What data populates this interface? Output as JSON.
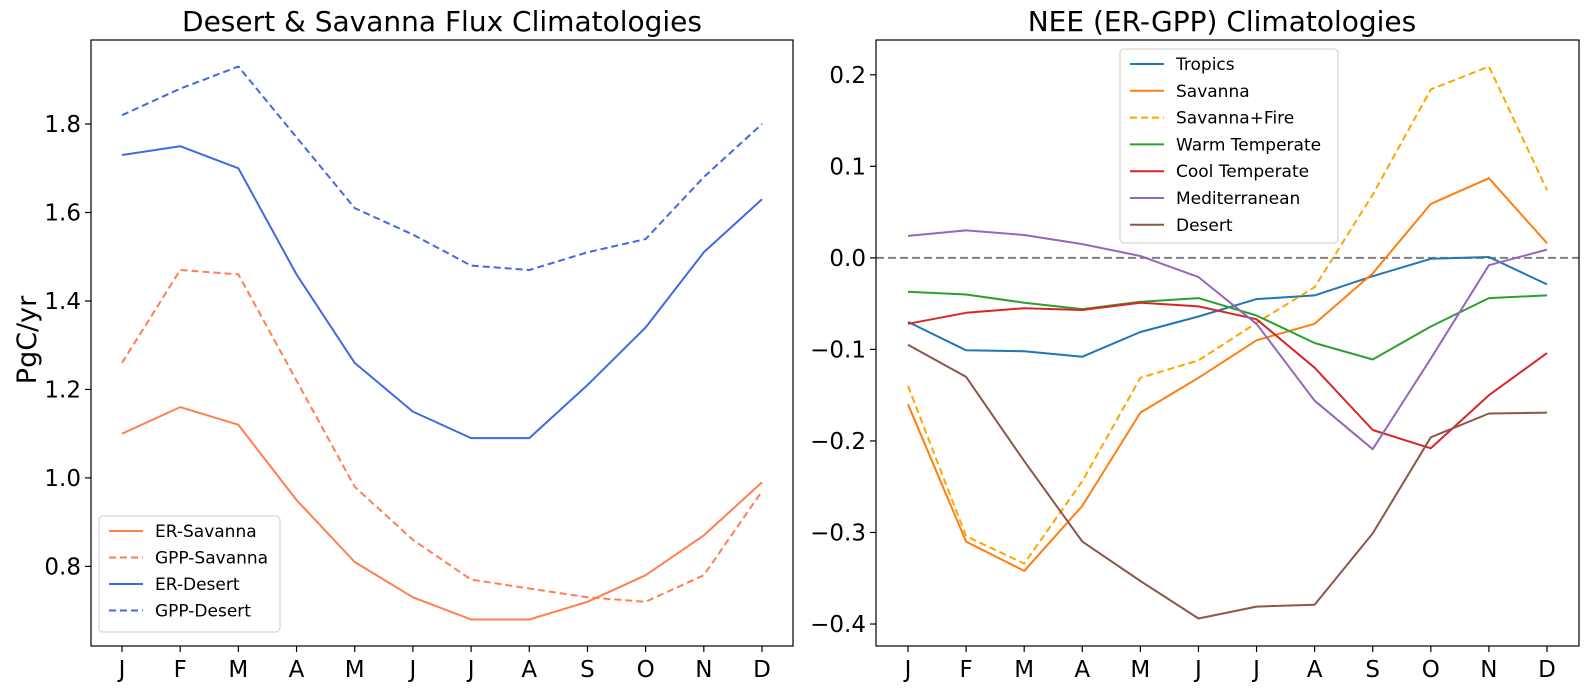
{
  "chart_data": [
    {
      "type": "line",
      "title": "Desert & Savanna Flux Climatologies",
      "xlabel": "",
      "ylabel": "PgC/yr",
      "categories": [
        "J",
        "F",
        "M",
        "A",
        "M",
        "J",
        "J",
        "A",
        "S",
        "O",
        "N",
        "D"
      ],
      "ylim": [
        0.62,
        1.99
      ],
      "yticks": [
        0.8,
        1.0,
        1.2,
        1.4,
        1.6,
        1.8
      ],
      "ytick_labels": [
        "0.8",
        "1.0",
        "1.2",
        "1.4",
        "1.6",
        "1.8"
      ],
      "grid": false,
      "legend_position": "lower-left",
      "series": [
        {
          "name": "ER-Savanna",
          "color": "#ff7f50",
          "dash": false,
          "values": [
            1.1,
            1.16,
            1.12,
            0.95,
            0.81,
            0.73,
            0.68,
            0.68,
            0.72,
            0.78,
            0.87,
            0.99
          ]
        },
        {
          "name": "GPP-Savanna",
          "color": "#ff7f50",
          "dash": true,
          "values": [
            1.26,
            1.47,
            1.46,
            1.22,
            0.98,
            0.86,
            0.77,
            0.75,
            0.73,
            0.72,
            0.78,
            0.97
          ]
        },
        {
          "name": "ER-Desert",
          "color": "#4169e1",
          "dash": false,
          "values": [
            1.73,
            1.75,
            1.7,
            1.46,
            1.26,
            1.15,
            1.09,
            1.09,
            1.21,
            1.34,
            1.51,
            1.63
          ]
        },
        {
          "name": "GPP-Desert",
          "color": "#4169e1",
          "dash": true,
          "values": [
            1.82,
            1.88,
            1.93,
            1.77,
            1.61,
            1.55,
            1.48,
            1.47,
            1.51,
            1.54,
            1.68,
            1.8
          ]
        }
      ]
    },
    {
      "type": "line",
      "title": "NEE (ER-GPP) Climatologies",
      "xlabel": "",
      "ylabel": "",
      "categories": [
        "J",
        "F",
        "M",
        "A",
        "M",
        "J",
        "J",
        "A",
        "S",
        "O",
        "N",
        "D"
      ],
      "ylim": [
        -0.424,
        0.238
      ],
      "yticks": [
        -0.4,
        -0.3,
        -0.2,
        -0.1,
        0.0,
        0.1,
        0.2
      ],
      "ytick_labels": [
        "−0.4",
        "−0.3",
        "−0.2",
        "−0.1",
        "0.0",
        "0.1",
        "0.2"
      ],
      "grid": false,
      "reference_line": {
        "y": 0.0,
        "color": "#808080",
        "dash": true
      },
      "legend_position": "top-center",
      "series": [
        {
          "name": "Tropics",
          "color": "#1f77b4",
          "dash": false,
          "values": [
            -0.07,
            -0.101,
            -0.102,
            -0.108,
            -0.081,
            -0.064,
            -0.045,
            -0.041,
            -0.02,
            -0.001,
            0.001,
            -0.029
          ]
        },
        {
          "name": "Savanna",
          "color": "#ff7f0e",
          "dash": false,
          "values": [
            -0.16,
            -0.31,
            -0.342,
            -0.271,
            -0.169,
            -0.131,
            -0.09,
            -0.072,
            -0.017,
            0.059,
            0.087,
            0.016
          ]
        },
        {
          "name": "Savanna+Fire",
          "color": "#ffa500",
          "dash": true,
          "values": [
            -0.14,
            -0.304,
            -0.334,
            -0.244,
            -0.131,
            -0.112,
            -0.071,
            -0.032,
            0.069,
            0.184,
            0.209,
            0.074
          ]
        },
        {
          "name": "Warm Temperate",
          "color": "#2ca02c",
          "dash": false,
          "values": [
            -0.037,
            -0.04,
            -0.049,
            -0.056,
            -0.048,
            -0.044,
            -0.063,
            -0.093,
            -0.111,
            -0.075,
            -0.044,
            -0.041
          ]
        },
        {
          "name": "Cool Temperate",
          "color": "#d62728",
          "dash": false,
          "values": [
            -0.072,
            -0.06,
            -0.055,
            -0.057,
            -0.049,
            -0.053,
            -0.067,
            -0.12,
            -0.188,
            -0.208,
            -0.15,
            -0.104
          ]
        },
        {
          "name": "Mediterranean",
          "color": "#9467bd",
          "dash": false,
          "values": [
            0.024,
            0.03,
            0.025,
            0.015,
            0.002,
            -0.021,
            -0.072,
            -0.156,
            -0.209,
            -0.11,
            -0.008,
            0.009
          ]
        },
        {
          "name": "Desert",
          "color": "#8c564b",
          "dash": false,
          "values": [
            -0.095,
            -0.13,
            -0.222,
            -0.31,
            -0.353,
            -0.394,
            -0.381,
            -0.379,
            -0.301,
            -0.196,
            -0.17,
            -0.169
          ]
        }
      ]
    }
  ]
}
